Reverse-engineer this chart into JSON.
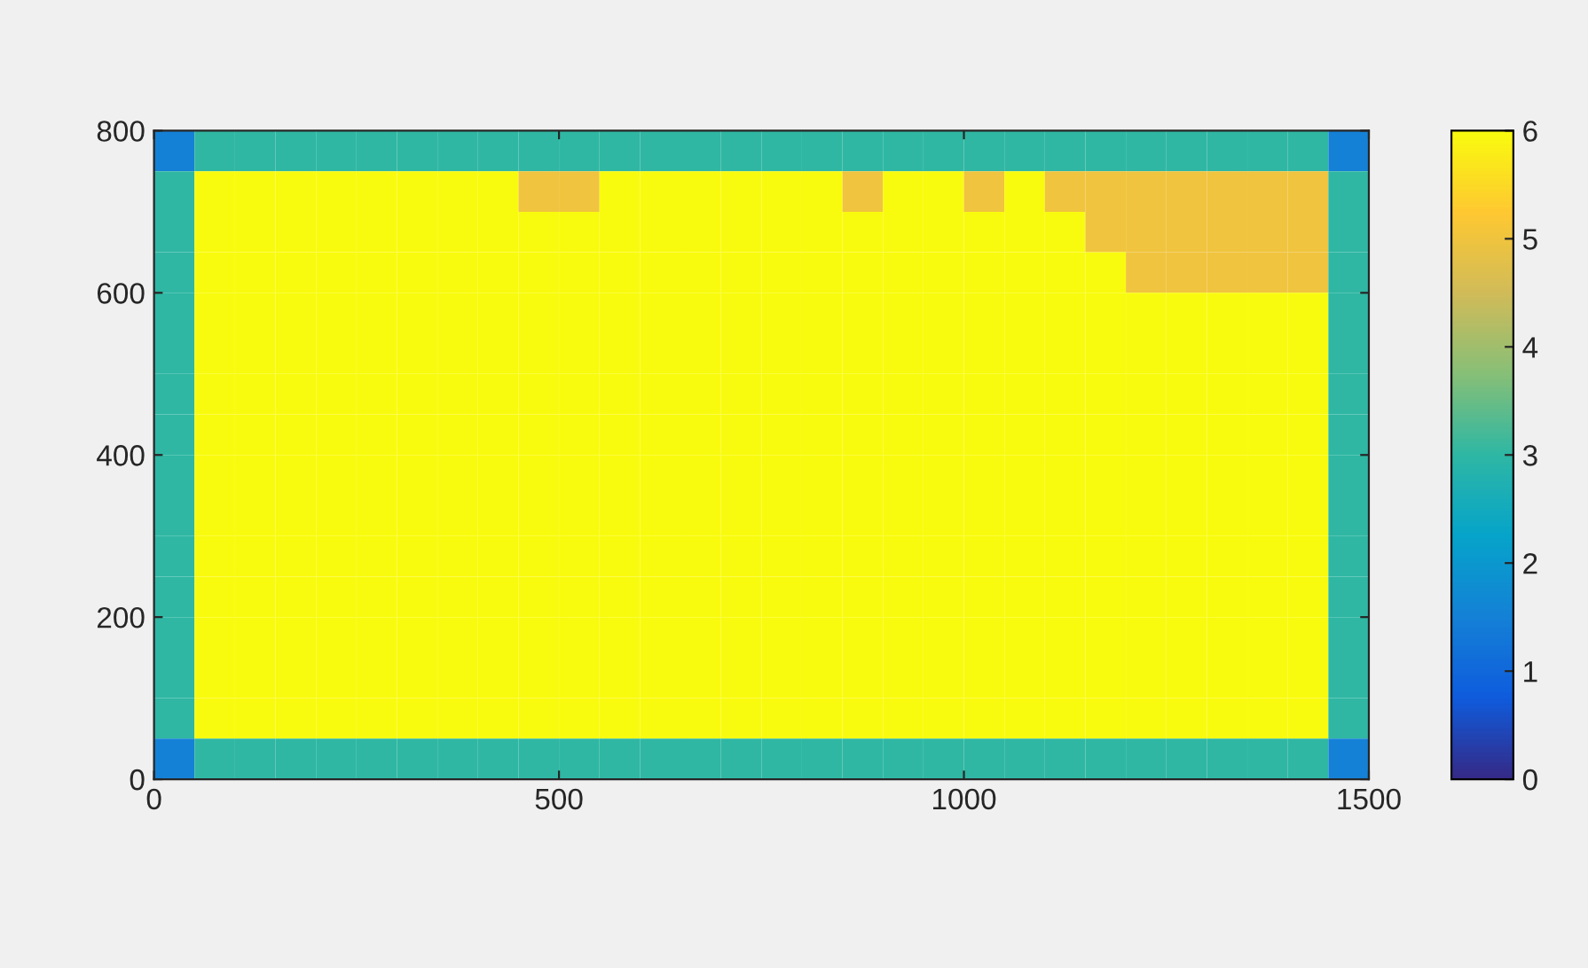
{
  "chart_data": {
    "type": "heatmap",
    "x": [
      25,
      75,
      125,
      175,
      225,
      275,
      325,
      375,
      425,
      475,
      525,
      575,
      625,
      675,
      725,
      775,
      825,
      875,
      925,
      975,
      1025,
      1075,
      1125,
      1175,
      1225,
      1275,
      1325,
      1375,
      1425,
      1475
    ],
    "y": [
      775,
      725,
      675,
      625,
      575,
      525,
      475,
      425,
      375,
      325,
      275,
      225,
      175,
      125,
      75,
      25
    ],
    "cells": [
      [
        1.5,
        3,
        3,
        3,
        3,
        3,
        3,
        3,
        3,
        3,
        3,
        3,
        3,
        3,
        3,
        3,
        3,
        3,
        3,
        3,
        3,
        3,
        3,
        3,
        3,
        3,
        3,
        3,
        3,
        1.5
      ],
      [
        3,
        6,
        6,
        6,
        6,
        6,
        6,
        6,
        6,
        5,
        5,
        6,
        6,
        6,
        6,
        6,
        6,
        5,
        6,
        6,
        5,
        6,
        5,
        5,
        5,
        5,
        5,
        5,
        5,
        3
      ],
      [
        3,
        6,
        6,
        6,
        6,
        6,
        6,
        6,
        6,
        6,
        6,
        6,
        6,
        6,
        6,
        6,
        6,
        6,
        6,
        6,
        6,
        6,
        6,
        5,
        5,
        5,
        5,
        5,
        5,
        3
      ],
      [
        3,
        6,
        6,
        6,
        6,
        6,
        6,
        6,
        6,
        6,
        6,
        6,
        6,
        6,
        6,
        6,
        6,
        6,
        6,
        6,
        6,
        6,
        6,
        6,
        5,
        5,
        5,
        5,
        5,
        3
      ],
      [
        3,
        6,
        6,
        6,
        6,
        6,
        6,
        6,
        6,
        6,
        6,
        6,
        6,
        6,
        6,
        6,
        6,
        6,
        6,
        6,
        6,
        6,
        6,
        6,
        6,
        6,
        6,
        6,
        6,
        3
      ],
      [
        3,
        6,
        6,
        6,
        6,
        6,
        6,
        6,
        6,
        6,
        6,
        6,
        6,
        6,
        6,
        6,
        6,
        6,
        6,
        6,
        6,
        6,
        6,
        6,
        6,
        6,
        6,
        6,
        6,
        3
      ],
      [
        3,
        6,
        6,
        6,
        6,
        6,
        6,
        6,
        6,
        6,
        6,
        6,
        6,
        6,
        6,
        6,
        6,
        6,
        6,
        6,
        6,
        6,
        6,
        6,
        6,
        6,
        6,
        6,
        6,
        3
      ],
      [
        3,
        6,
        6,
        6,
        6,
        6,
        6,
        6,
        6,
        6,
        6,
        6,
        6,
        6,
        6,
        6,
        6,
        6,
        6,
        6,
        6,
        6,
        6,
        6,
        6,
        6,
        6,
        6,
        6,
        3
      ],
      [
        3,
        6,
        6,
        6,
        6,
        6,
        6,
        6,
        6,
        6,
        6,
        6,
        6,
        6,
        6,
        6,
        6,
        6,
        6,
        6,
        6,
        6,
        6,
        6,
        6,
        6,
        6,
        6,
        6,
        3
      ],
      [
        3,
        6,
        6,
        6,
        6,
        6,
        6,
        6,
        6,
        6,
        6,
        6,
        6,
        6,
        6,
        6,
        6,
        6,
        6,
        6,
        6,
        6,
        6,
        6,
        6,
        6,
        6,
        6,
        6,
        3
      ],
      [
        3,
        6,
        6,
        6,
        6,
        6,
        6,
        6,
        6,
        6,
        6,
        6,
        6,
        6,
        6,
        6,
        6,
        6,
        6,
        6,
        6,
        6,
        6,
        6,
        6,
        6,
        6,
        6,
        6,
        3
      ],
      [
        3,
        6,
        6,
        6,
        6,
        6,
        6,
        6,
        6,
        6,
        6,
        6,
        6,
        6,
        6,
        6,
        6,
        6,
        6,
        6,
        6,
        6,
        6,
        6,
        6,
        6,
        6,
        6,
        6,
        3
      ],
      [
        3,
        6,
        6,
        6,
        6,
        6,
        6,
        6,
        6,
        6,
        6,
        6,
        6,
        6,
        6,
        6,
        6,
        6,
        6,
        6,
        6,
        6,
        6,
        6,
        6,
        6,
        6,
        6,
        6,
        3
      ],
      [
        3,
        6,
        6,
        6,
        6,
        6,
        6,
        6,
        6,
        6,
        6,
        6,
        6,
        6,
        6,
        6,
        6,
        6,
        6,
        6,
        6,
        6,
        6,
        6,
        6,
        6,
        6,
        6,
        6,
        3
      ],
      [
        3,
        6,
        6,
        6,
        6,
        6,
        6,
        6,
        6,
        6,
        6,
        6,
        6,
        6,
        6,
        6,
        6,
        6,
        6,
        6,
        6,
        6,
        6,
        6,
        6,
        6,
        6,
        6,
        6,
        3
      ],
      [
        1.5,
        3,
        3,
        3,
        3,
        3,
        3,
        3,
        3,
        3,
        3,
        3,
        3,
        3,
        3,
        3,
        3,
        3,
        3,
        3,
        3,
        3,
        3,
        3,
        3,
        3,
        3,
        3,
        3,
        1.5
      ]
    ],
    "xlim": [
      0,
      1500
    ],
    "xticks": [
      0,
      500,
      1000,
      1500
    ],
    "ylim": [
      0,
      800
    ],
    "yticks": [
      0,
      200,
      400,
      600,
      800
    ],
    "clim": [
      0,
      6
    ],
    "cticks": [
      0,
      1,
      2,
      3,
      4,
      5,
      6
    ]
  }
}
